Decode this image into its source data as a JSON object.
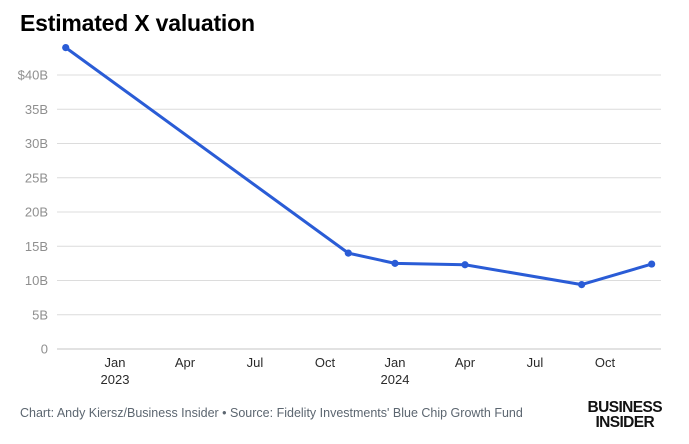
{
  "title": "Estimated X valuation",
  "footer": {
    "credit": "Chart: Andy Kiersz/Business Insider • Source: Fidelity Investments' Blue Chip Growth Fund",
    "logo_line1": "BUSINESS",
    "logo_line2": "INSIDER"
  },
  "colors": {
    "line": "#2a5cd6",
    "point": "#2a5cd6",
    "grid": "#dcdcdc",
    "axis": "#c4c4c4",
    "y_label": "#8f8f8f",
    "x_label": "#2b2b2b",
    "footer_text": "#5c6670",
    "title_text": "#000000",
    "background": "#ffffff"
  },
  "chart_data": {
    "type": "line",
    "title": "Estimated X valuation",
    "xlabel": "",
    "ylabel": "",
    "ylim": [
      0,
      44
    ],
    "grid": true,
    "legend": "none",
    "series": [
      {
        "name": "Estimated X valuation ($B)",
        "points": [
          {
            "date": "2022-10-28",
            "value": 44.0
          },
          {
            "date": "2023-11-01",
            "value": 14.0
          },
          {
            "date": "2024-01-01",
            "value": 12.5
          },
          {
            "date": "2024-04-01",
            "value": 12.3
          },
          {
            "date": "2024-09-01",
            "value": 9.4
          },
          {
            "date": "2024-12-01",
            "value": 12.4
          }
        ]
      }
    ],
    "y_ticks": [
      {
        "value": 40,
        "label": "$40B"
      },
      {
        "value": 35,
        "label": "35B"
      },
      {
        "value": 30,
        "label": "30B"
      },
      {
        "value": 25,
        "label": "25B"
      },
      {
        "value": 20,
        "label": "20B"
      },
      {
        "value": 15,
        "label": "15B"
      },
      {
        "value": 10,
        "label": "10B"
      },
      {
        "value": 5,
        "label": "5B"
      },
      {
        "value": 0,
        "label": "0"
      }
    ],
    "x_ticks": [
      {
        "date": "2023-01-01",
        "label": "Jan",
        "sublabel": "2023"
      },
      {
        "date": "2023-04-01",
        "label": "Apr"
      },
      {
        "date": "2023-07-01",
        "label": "Jul"
      },
      {
        "date": "2023-10-01",
        "label": "Oct"
      },
      {
        "date": "2024-01-01",
        "label": "Jan",
        "sublabel": "2024"
      },
      {
        "date": "2024-04-01",
        "label": "Apr"
      },
      {
        "date": "2024-07-01",
        "label": "Jul"
      },
      {
        "date": "2024-10-01",
        "label": "Oct"
      }
    ]
  }
}
